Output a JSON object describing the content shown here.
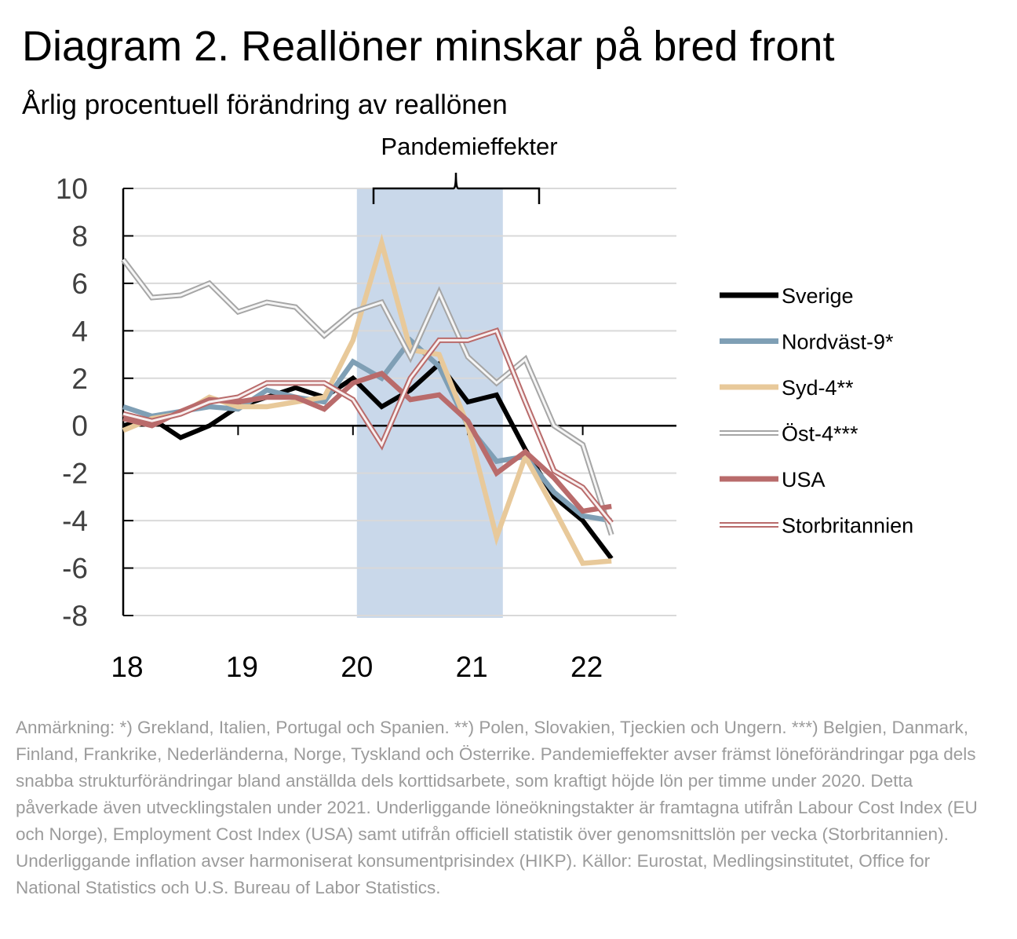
{
  "title": "Diagram 2. Reallöner minskar på bred front",
  "subtitle": "Årlig procentuell förändring av reallönen",
  "note": "Anmärkning: *) Grekland, Italien, Portugal och Spanien. **) Polen, Slovakien, Tjeckien och Ungern. ***) Belgien, Danmark, Finland, Frankrike, Nederländerna, Norge, Tyskland och Österrike. Pandemieffekter avser främst löneförändringar pga dels snabba strukturförändringar bland anställda dels korttidsarbete, som kraftigt höjde lön per timme under 2020. Detta påverkade även utvecklingstalen under 2021. Underliggande löneökningstakter är framtagna utifrån Labour Cost Index (EU och Norge), Employment Cost Index (USA) samt utifrån officiell statistik över genomsnittslön per vecka (Storbritannien). Underliggande inflation avser harmoniserat konsumentprisindex (HIKP). Källor: Eurostat, Medlingsinstitutet, Office for National Statistics och U.S. Bureau of Labor Statistics.",
  "chart_data": {
    "type": "line",
    "x_unit": "quarter",
    "x": [
      "2018Q1",
      "2018Q2",
      "2018Q3",
      "2018Q4",
      "2019Q1",
      "2019Q2",
      "2019Q3",
      "2019Q4",
      "2020Q1",
      "2020Q2",
      "2020Q3",
      "2020Q4",
      "2021Q1",
      "2021Q2",
      "2021Q3",
      "2021Q4",
      "2022Q1",
      "2022Q2"
    ],
    "x_tick_labels": [
      "18",
      "19",
      "20",
      "21",
      "22"
    ],
    "y_ticks": [
      "10",
      "8",
      "6",
      "4",
      "2",
      "0",
      "-2",
      "-4",
      "-6",
      "-8"
    ],
    "ylim": [
      -8,
      10
    ],
    "grid": "horizontal",
    "legend_position": "right",
    "shaded_region": {
      "from": "2020Q1",
      "to": "2021Q2",
      "label": "Pandemieffekter",
      "color": "#c9d8ea"
    },
    "series": [
      {
        "name": "Sverige",
        "color": "#000000",
        "style": "solid",
        "values": [
          0,
          0.3,
          -0.5,
          0,
          0.8,
          1.2,
          1.6,
          1.2,
          2.0,
          0.8,
          1.5,
          2.6,
          1.0,
          1.3,
          -1.0,
          -3.0,
          -4.0,
          -5.6
        ]
      },
      {
        "name": "Nordväst-9*",
        "color": "#7f9fb5",
        "style": "solid",
        "values": [
          0.8,
          0.4,
          0.6,
          0.8,
          0.7,
          1.5,
          1.2,
          1.0,
          2.7,
          2.0,
          3.6,
          2.5,
          0,
          -1.5,
          -1.3,
          -2.8,
          -3.8,
          -4.0
        ]
      },
      {
        "name": "Syd-4**",
        "color": "#e8c99a",
        "style": "solid",
        "values": [
          -0.2,
          0.3,
          0.5,
          1.2,
          0.8,
          0.8,
          1.0,
          1.2,
          3.6,
          7.7,
          3.2,
          3.0,
          0,
          -4.7,
          -1.3,
          -3.5,
          -5.8,
          -5.7
        ]
      },
      {
        "name": "Öst-4***",
        "color": "#a6a6a6",
        "style": "double",
        "values": [
          7.0,
          5.4,
          5.5,
          6.0,
          4.8,
          5.2,
          5.0,
          3.8,
          4.8,
          5.2,
          2.9,
          5.6,
          2.9,
          1.8,
          2.8,
          0,
          -0.8,
          -4.6
        ]
      },
      {
        "name": "USA",
        "color": "#b96b6b",
        "style": "solid",
        "values": [
          0.3,
          0,
          0.6,
          1.1,
          1.0,
          1.2,
          1.2,
          0.7,
          1.8,
          2.2,
          1.1,
          1.3,
          0.2,
          -2.0,
          -1.1,
          -2.2,
          -3.6,
          -3.4
        ]
      },
      {
        "name": "Storbritannien",
        "color": "#b96b6b",
        "style": "double",
        "values": [
          0.5,
          0.2,
          0.5,
          1.0,
          1.2,
          1.8,
          1.8,
          1.8,
          1.1,
          -0.8,
          2.0,
          3.6,
          3.6,
          4.0,
          1.0,
          -1.9,
          -2.6,
          -4.1
        ]
      }
    ]
  }
}
